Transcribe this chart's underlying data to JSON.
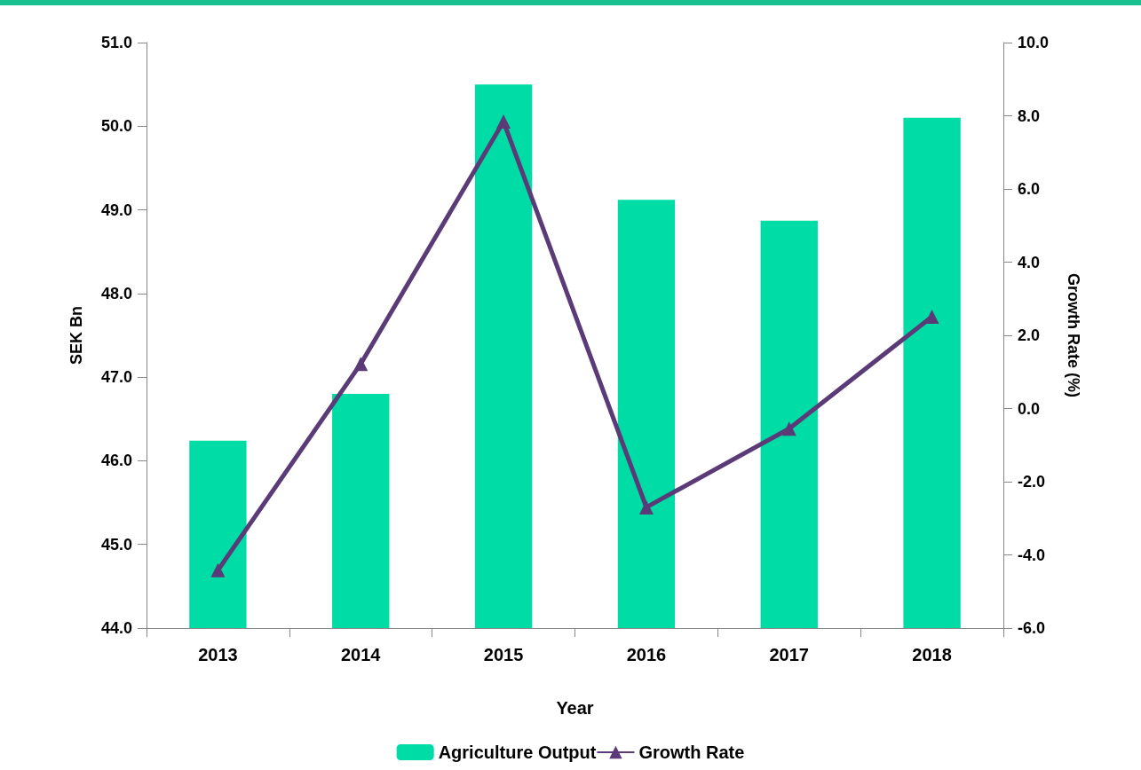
{
  "chart_data": {
    "type": "bar",
    "xlabel": "Year",
    "ylabel": "SEK Bn",
    "y2label": "Growth Rate (%)",
    "categories": [
      "2013",
      "2014",
      "2015",
      "2016",
      "2017",
      "2018"
    ],
    "series": [
      {
        "name": "Agriculture Output",
        "color": "#00dca5",
        "values": [
          46.24,
          46.8,
          50.5,
          49.12,
          48.87,
          50.1
        ]
      },
      {
        "name": "Growth Rate",
        "type": "line",
        "axis": "y2",
        "color": "#5b3a78",
        "marker": "triangle",
        "values": [
          -4.42,
          1.22,
          7.84,
          -2.7,
          -0.55,
          2.51
        ]
      }
    ],
    "ylim": [
      44,
      51
    ],
    "yticks": [
      {
        "value": 44,
        "label": "44.0"
      },
      {
        "value": 45,
        "label": "45.0"
      },
      {
        "value": 46,
        "label": "46.0"
      },
      {
        "value": 47,
        "label": "47.0"
      },
      {
        "value": 48,
        "label": "48.0"
      },
      {
        "value": 49,
        "label": "49.0"
      },
      {
        "value": 50,
        "label": "50.0"
      },
      {
        "value": 51,
        "label": "51.0"
      }
    ],
    "y2lim": [
      -6,
      10
    ],
    "y2ticks": [
      {
        "value": -6,
        "label": "-6.0"
      },
      {
        "value": -4,
        "label": "-4.0"
      },
      {
        "value": -2,
        "label": "-2.0"
      },
      {
        "value": 0,
        "label": "0.0"
      },
      {
        "value": 2,
        "label": "2.0"
      },
      {
        "value": 4,
        "label": "4.0"
      },
      {
        "value": 6,
        "label": "6.0"
      },
      {
        "value": 8,
        "label": "8.0"
      },
      {
        "value": 10,
        "label": "10.0"
      }
    ],
    "grid": false,
    "legend": "bottom"
  }
}
